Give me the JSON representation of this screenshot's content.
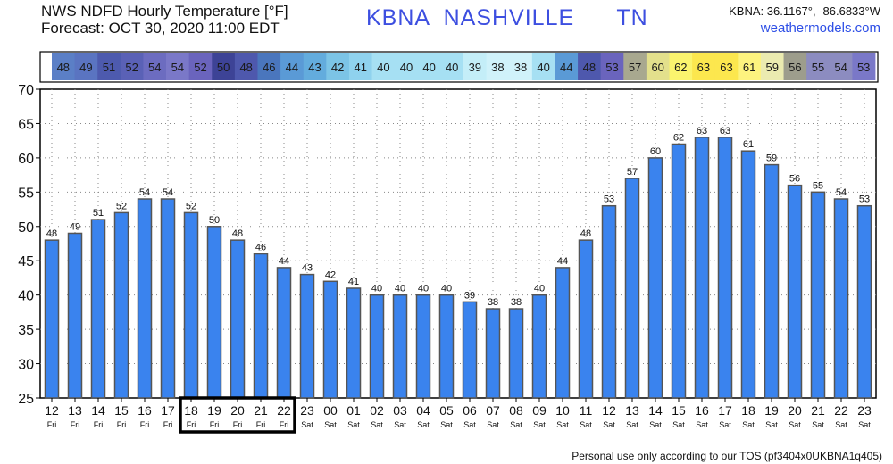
{
  "header": {
    "title_line1": "NWS NDFD Hourly Temperature [°F]",
    "title_line2": "Forecast: OCT 30, 2020 11:00 EDT",
    "station": "KBNA  NASHVILLE      TN",
    "coords": "KBNA: 36.1167°, -86.6833°W",
    "site": "weathermodels.com"
  },
  "footer": "Personal use only according to our TOS (pf3404x0UKBNA1q405)",
  "colors": {
    "bar_fill": "#3a83ee",
    "bar_edge": "#555555",
    "highlight_box": "#000000"
  },
  "chart_data": {
    "type": "bar",
    "title": "NWS NDFD Hourly Temperature [°F]",
    "categories": [
      "12",
      "13",
      "14",
      "15",
      "16",
      "17",
      "18",
      "19",
      "20",
      "21",
      "22",
      "23",
      "00",
      "01",
      "02",
      "03",
      "04",
      "05",
      "06",
      "07",
      "08",
      "09",
      "10",
      "11",
      "12",
      "13",
      "14",
      "15",
      "16",
      "17",
      "18",
      "19",
      "20",
      "21",
      "22",
      "23"
    ],
    "day_labels": [
      "Fri",
      "Fri",
      "Fri",
      "Fri",
      "Fri",
      "Fri",
      "Fri",
      "Fri",
      "Fri",
      "Fri",
      "Fri",
      "Sat",
      "Sat",
      "Sat",
      "Sat",
      "Sat",
      "Sat",
      "Sat",
      "Sat",
      "Sat",
      "Sat",
      "Sat",
      "Sat",
      "Sat",
      "Sat",
      "Sat",
      "Sat",
      "Sat",
      "Sat",
      "Sat",
      "Sat",
      "Sat",
      "Sat",
      "Sat",
      "Sat",
      "Sat"
    ],
    "values": [
      48,
      49,
      51,
      52,
      54,
      54,
      52,
      50,
      48,
      46,
      44,
      43,
      42,
      41,
      40,
      40,
      40,
      40,
      39,
      38,
      38,
      40,
      44,
      48,
      53,
      57,
      60,
      62,
      63,
      63,
      61,
      59,
      56,
      55,
      54,
      53
    ],
    "bar_labels": [
      "48",
      "49",
      "51",
      "52",
      "54",
      "54",
      "52",
      "50",
      "48",
      "46",
      "44",
      "43",
      "42",
      "41",
      "40",
      "40",
      "40",
      "40",
      "39",
      "38",
      "38",
      "40",
      "44",
      "48",
      "53",
      "57",
      "60",
      "62",
      "63",
      "63",
      "61",
      "59",
      "56",
      "55",
      "54",
      "53"
    ],
    "strip_colors": [
      "#5b7fc6",
      "#5a74c1",
      "#4d5aae",
      "#5a61b6",
      "#6c6cc0",
      "#7a78c8",
      "#6a64bd",
      "#3d4396",
      "#4e58ad",
      "#4a76bd",
      "#5a9ad6",
      "#63acdd",
      "#7cc4e6",
      "#8fd2ee",
      "#a6e0f3",
      "#a6e0f3",
      "#a6e0f3",
      "#a6e0f3",
      "#c4eef8",
      "#d0f2fa",
      "#d0f2fa",
      "#a6e0f3",
      "#5a9ad6",
      "#4e58ad",
      "#6a64bd",
      "#a8a88f",
      "#e3e08c",
      "#fbf46e",
      "#fce74e",
      "#fce74e",
      "#fdf37f",
      "#ebebb0",
      "#9d9d8c",
      "#8c8cc0",
      "#8c8cc0",
      "#7a78c8"
    ],
    "ylim": [
      25,
      70
    ],
    "yticks": [
      "25",
      "30",
      "35",
      "40",
      "45",
      "50",
      "55",
      "60",
      "65",
      "70"
    ],
    "highlight_range": [
      6,
      10
    ],
    "grid": true
  }
}
